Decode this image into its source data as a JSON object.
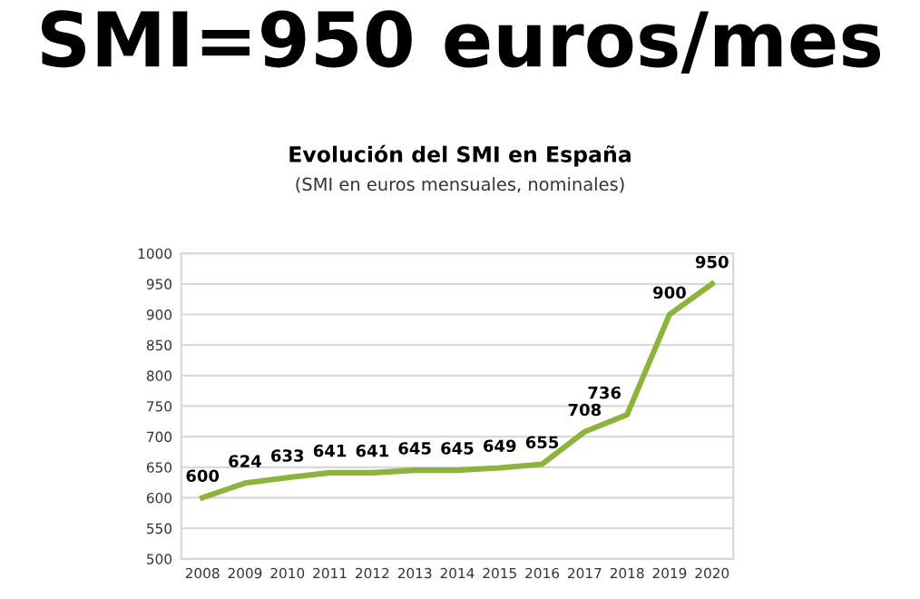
{
  "chart_data": {
    "type": "line",
    "title": "SMI=950 euros/mes",
    "subtitle": "Evolución del SMI en España",
    "annotations": [
      "(SMI en euros mensuales, nominales)"
    ],
    "categories": [
      "2008",
      "2009",
      "2010",
      "2011",
      "2012",
      "2013",
      "2014",
      "2015",
      "2016",
      "2017",
      "2018",
      "2019",
      "2020"
    ],
    "series": [
      {
        "color": "#8cb43c",
        "values": [
          600,
          624,
          633,
          641,
          641,
          645,
          645,
          649,
          655,
          708,
          736,
          900,
          950
        ]
      }
    ],
    "ylim": [
      500,
      1000
    ],
    "yticks": [
      500,
      550,
      600,
      650,
      700,
      750,
      800,
      850,
      900,
      950,
      1000
    ],
    "grid": "y",
    "data_labels": true,
    "marker": "none",
    "line_style": "solid",
    "legend": false
  }
}
